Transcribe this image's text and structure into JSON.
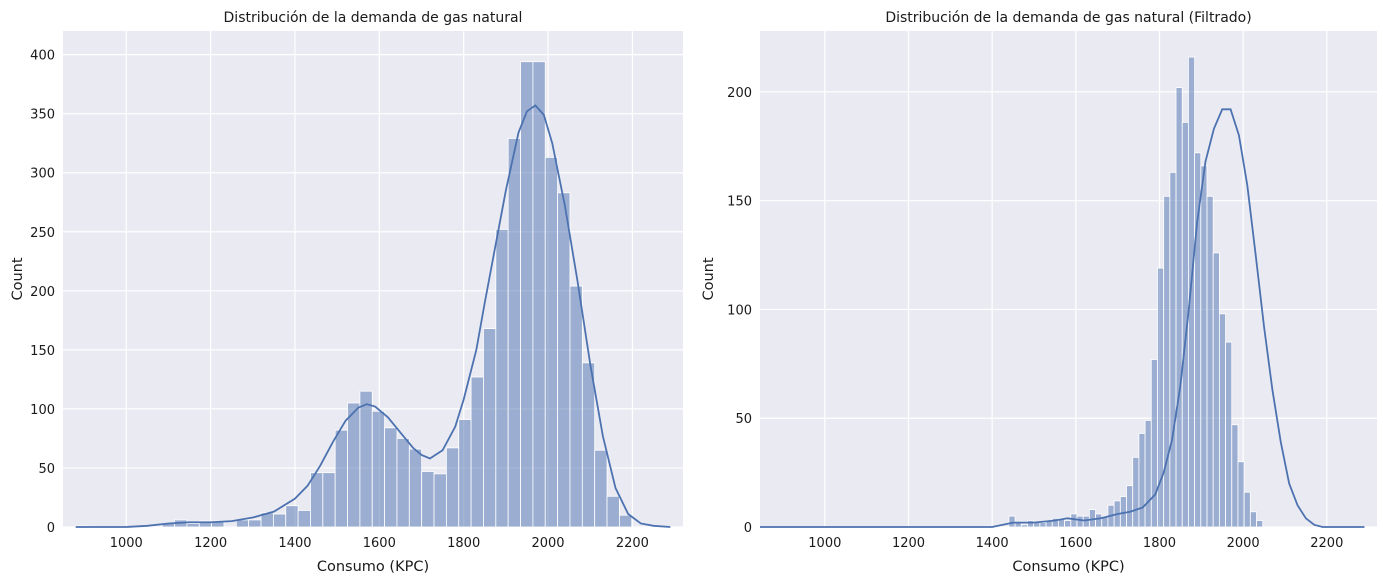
{
  "chart_data": [
    {
      "type": "bar",
      "title": "Distribución de la demanda de gas natural",
      "xlabel": "Consumo (KPC)",
      "ylabel": "Count",
      "xlim": [
        850,
        2320
      ],
      "ylim": [
        0,
        420
      ],
      "xticks": [
        1000,
        1200,
        1400,
        1600,
        1800,
        2000,
        2200
      ],
      "yticks": [
        0,
        50,
        100,
        150,
        200,
        250,
        300,
        350,
        400
      ],
      "grid": true,
      "bin_start": 880,
      "bin_width": 29.3,
      "counts": [
        1,
        0,
        0,
        0,
        0,
        0,
        0,
        3,
        6,
        3,
        5,
        5,
        0,
        6,
        6,
        12,
        11,
        18,
        14,
        46,
        46,
        82,
        105,
        115,
        98,
        84,
        75,
        66,
        47,
        45,
        67,
        91,
        127,
        168,
        252,
        329,
        394,
        394,
        313,
        283,
        204,
        139,
        65,
        26,
        10
      ],
      "kde": {
        "x": [
          880,
          1000,
          1050,
          1100,
          1150,
          1200,
          1250,
          1300,
          1350,
          1400,
          1430,
          1460,
          1490,
          1520,
          1550,
          1570,
          1590,
          1620,
          1650,
          1680,
          1700,
          1720,
          1750,
          1780,
          1800,
          1830,
          1850,
          1870,
          1900,
          1930,
          1950,
          1970,
          1990,
          2010,
          2040,
          2070,
          2100,
          2130,
          2160,
          2190,
          2220,
          2250,
          2290
        ],
        "y": [
          0,
          0,
          1,
          3,
          4,
          4,
          5,
          8,
          13,
          24,
          35,
          52,
          72,
          90,
          101,
          104,
          102,
          93,
          80,
          67,
          61,
          58,
          65,
          85,
          108,
          150,
          190,
          228,
          285,
          334,
          352,
          357,
          349,
          325,
          272,
          208,
          138,
          77,
          33,
          11,
          3,
          1,
          0
        ]
      }
    },
    {
      "type": "bar",
      "title": "Distribución de la demanda de gas natural (Filtrado)",
      "xlabel": "Consumo (KPC)",
      "ylabel": "Count",
      "xlim": [
        845,
        2320
      ],
      "ylim": [
        0,
        228
      ],
      "xticks": [
        1000,
        1200,
        1400,
        1600,
        1800,
        2000,
        2200
      ],
      "yticks": [
        0,
        50,
        100,
        150,
        200
      ],
      "grid": true,
      "bin_start": 1440,
      "bin_width": 14.8,
      "counts": [
        5,
        2,
        1,
        3,
        2,
        2,
        3,
        4,
        4,
        3,
        6,
        5,
        5,
        8,
        6,
        5,
        10,
        12,
        14,
        19,
        32,
        43,
        49,
        77,
        119,
        152,
        163,
        202,
        186,
        216,
        172,
        166,
        152,
        126,
        98,
        85,
        47,
        30,
        16,
        7,
        3
      ],
      "kde": {
        "x": [
          845,
          900,
          1000,
          1100,
          1200,
          1300,
          1350,
          1400,
          1450,
          1500,
          1550,
          1580,
          1620,
          1660,
          1700,
          1730,
          1760,
          1790,
          1810,
          1830,
          1850,
          1870,
          1890,
          1910,
          1930,
          1950,
          1970,
          1990,
          2010,
          2030,
          2050,
          2070,
          2090,
          2110,
          2130,
          2150,
          2170,
          2190,
          2220,
          2260,
          2290
        ],
        "y": [
          0,
          0,
          0,
          0,
          0,
          0,
          0,
          0,
          2,
          2,
          3,
          4,
          3,
          4,
          6,
          7,
          9,
          15,
          25,
          40,
          65,
          100,
          140,
          168,
          183,
          192,
          192,
          180,
          157,
          125,
          92,
          63,
          39,
          20,
          10,
          4,
          1,
          0,
          0,
          0,
          0
        ]
      }
    }
  ]
}
